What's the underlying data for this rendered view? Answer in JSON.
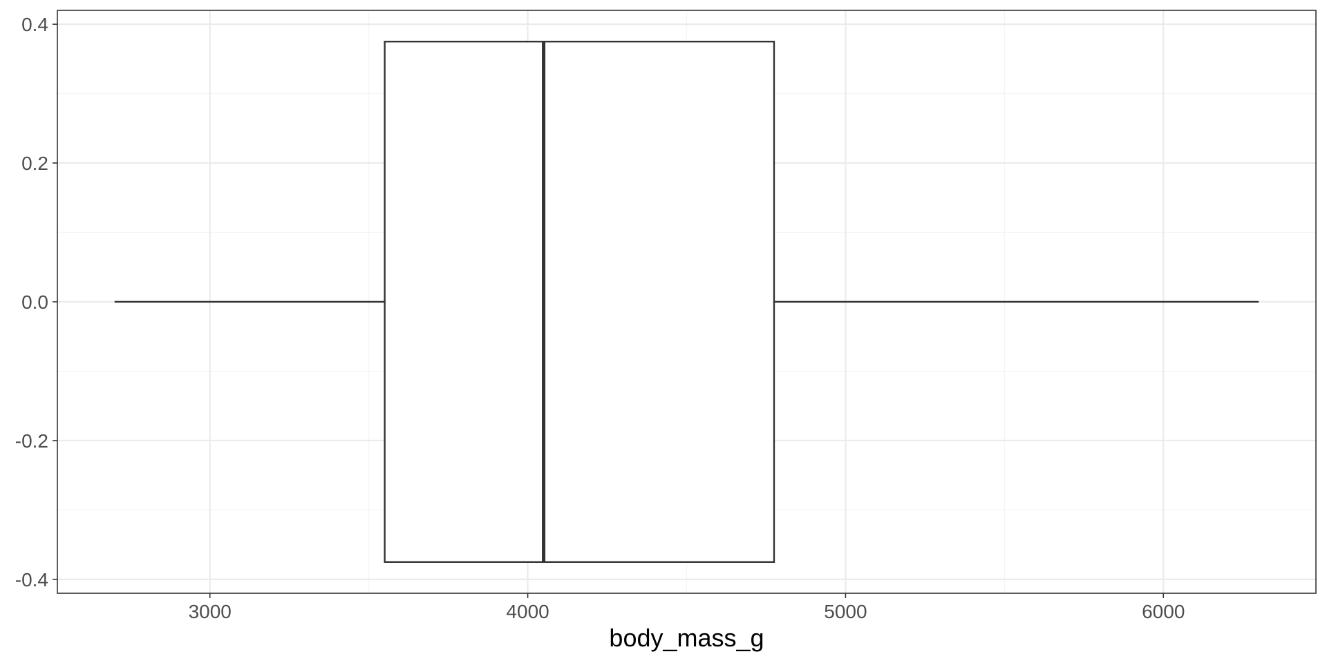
{
  "chart_data": {
    "type": "boxplot",
    "title": "",
    "xlabel": "body_mass_g",
    "ylabel": "",
    "xlim": [
      2520,
      6480
    ],
    "ylim": [
      -0.42,
      0.42
    ],
    "x_ticks": [
      3000,
      4000,
      5000,
      6000
    ],
    "x_tick_labels": [
      "3000",
      "4000",
      "5000",
      "6000"
    ],
    "x_minor_ticks": [
      3500,
      4500,
      5500
    ],
    "y_ticks": [
      -0.4,
      -0.2,
      0.0,
      0.2,
      0.4
    ],
    "y_tick_labels": [
      "-0.4",
      "-0.2",
      "0.0",
      "0.2",
      "0.4"
    ],
    "y_minor_ticks": [
      -0.3,
      -0.1,
      0.1,
      0.3
    ],
    "grid": true,
    "legend": "none",
    "box": {
      "min": 2700,
      "q1": 3550,
      "median": 4050,
      "q3": 4775,
      "max": 6300,
      "y_center": 0.0,
      "half_width": 0.375
    },
    "colors": {
      "box_stroke": "#333333",
      "box_fill": "#ffffff",
      "grid_major": "#ebebeb",
      "grid_minor": "#f4f4f4",
      "panel_border": "#333333",
      "tick_label": "#4d4d4d",
      "axis_title": "#000000"
    }
  }
}
